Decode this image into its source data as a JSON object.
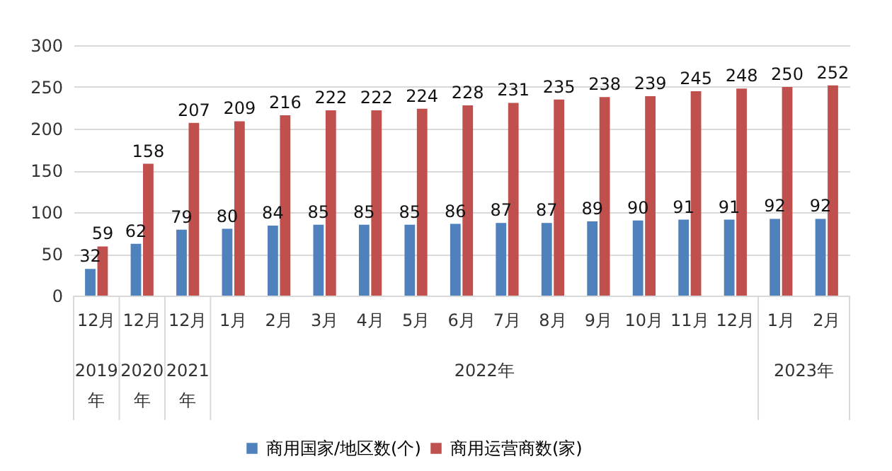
{
  "chart_data": {
    "type": "bar",
    "categories": [
      "12月",
      "12月",
      "12月",
      "1月",
      "2月",
      "3月",
      "4月",
      "5月",
      "6月",
      "7月",
      "8月",
      "9月",
      "10月",
      "11月",
      "12月",
      "1月",
      "2月"
    ],
    "series": [
      {
        "name": "商用国家/地区数(个)",
        "color": "#4f81bd",
        "values": [
          32,
          62,
          79,
          80,
          84,
          85,
          85,
          85,
          86,
          87,
          87,
          89,
          90,
          91,
          91,
          92,
          92
        ]
      },
      {
        "name": "商用运营商数(家)",
        "color": "#c0504d",
        "values": [
          59,
          158,
          207,
          209,
          216,
          222,
          222,
          224,
          228,
          231,
          235,
          238,
          239,
          245,
          248,
          250,
          252
        ]
      }
    ],
    "annotations": [
      "2019年",
      "2020年",
      "2021年",
      "2022年",
      "2023年"
    ],
    "ylim": [
      0,
      300
    ],
    "yticks": [
      0,
      50,
      100,
      150,
      200,
      250,
      300
    ],
    "grid": "y",
    "legend": "bottom",
    "data_labels": true
  }
}
